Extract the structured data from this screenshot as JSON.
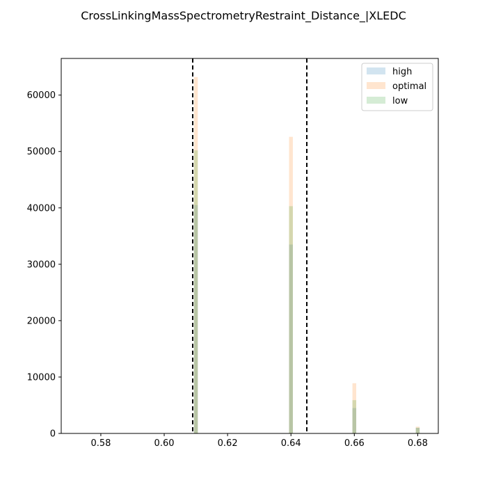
{
  "chart_data": {
    "type": "bar",
    "title": "CrossLinkingMassSpectrometryRestraint_Distance_|XLEDC",
    "xlabel": "",
    "ylabel": "",
    "xlim": [
      0.5675,
      0.6865
    ],
    "ylim": [
      0,
      66500
    ],
    "xticks": [
      0.58,
      0.6,
      0.62,
      0.64,
      0.66,
      0.68
    ],
    "xtick_labels": [
      "0.58",
      "0.60",
      "0.62",
      "0.64",
      "0.66",
      "0.68"
    ],
    "yticks": [
      0,
      10000,
      20000,
      30000,
      40000,
      50000,
      60000
    ],
    "ytick_labels": [
      "0",
      "10000",
      "20000",
      "30000",
      "40000",
      "50000",
      "60000"
    ],
    "bin_width": 0.0012,
    "series": [
      {
        "name": "high",
        "color": "#1f77b4",
        "bars": [
          {
            "x": 0.61,
            "y": 40500
          },
          {
            "x": 0.64,
            "y": 33500
          },
          {
            "x": 0.66,
            "y": 4500
          },
          {
            "x": 0.68,
            "y": 1000
          }
        ]
      },
      {
        "name": "optimal",
        "color": "#ff7f0e",
        "bars": [
          {
            "x": 0.61,
            "y": 63200
          },
          {
            "x": 0.64,
            "y": 52600
          },
          {
            "x": 0.66,
            "y": 8900
          },
          {
            "x": 0.68,
            "y": 1200
          }
        ]
      },
      {
        "name": "low",
        "color": "#2ca02c",
        "bars": [
          {
            "x": 0.61,
            "y": 50200
          },
          {
            "x": 0.64,
            "y": 40300
          },
          {
            "x": 0.66,
            "y": 5900
          },
          {
            "x": 0.68,
            "y": 1000
          }
        ]
      }
    ],
    "bar_opacity": 0.2,
    "vlines": [
      0.609,
      0.645
    ],
    "vline_style": "dashed",
    "legend_position": "top-right",
    "grid": false
  }
}
